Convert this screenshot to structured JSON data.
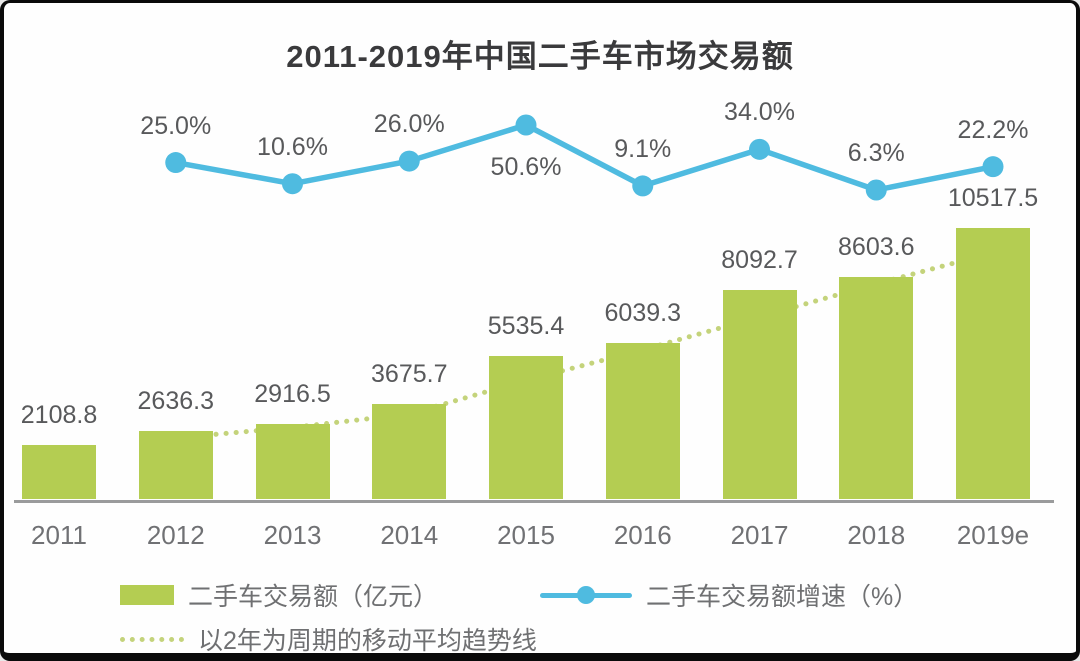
{
  "title": "2011-2019年中国二手车市场交易额",
  "chart_data": {
    "type": "bar",
    "subtype": "bar+line combo",
    "title": "2011-2019年中国二手车市场交易额",
    "xlabel": "",
    "ylabel": "",
    "grid": false,
    "legend_position": "bottom",
    "axis_color": "#9a9b9c",
    "categories": [
      "2011",
      "2012",
      "2013",
      "2014",
      "2015",
      "2016",
      "2017",
      "2018",
      "2019e"
    ],
    "series": [
      {
        "name": "二手车交易额（亿元）",
        "type": "bar",
        "color": "#b4cd52",
        "values": [
          2108.8,
          2636.3,
          2916.5,
          3675.7,
          5535.4,
          6039.3,
          8092.7,
          8603.6,
          10517.5
        ],
        "labels": [
          "2108.8",
          "2636.3",
          "2916.5",
          "3675.7",
          "5535.4",
          "6039.3",
          "8092.7",
          "8603.6",
          "10517.5"
        ]
      },
      {
        "name": "二手车交易额增速（%）",
        "type": "line",
        "color": "#4fbbe0",
        "start_category_index": 1,
        "values": [
          25.0,
          10.6,
          26.0,
          50.6,
          9.1,
          34.0,
          6.3,
          22.2
        ],
        "labels": [
          "25.0%",
          "10.6%",
          "26.0%",
          "50.6%",
          "9.1%",
          "34.0%",
          "6.3%",
          "22.2%"
        ],
        "label_side": [
          "above",
          "above",
          "above",
          "below",
          "above",
          "above",
          "above",
          "above"
        ]
      },
      {
        "name": "以2年为周期的移动平均趋势线",
        "type": "dotted_trend",
        "color": "#c4d37b",
        "derivation": "2-year moving average of bar values, plotted from 2012 to 2019e"
      }
    ]
  },
  "legend": {
    "bar_label": "二手车交易额（亿元）",
    "line_label": "二手车交易额增速（%）",
    "trend_label": "以2年为周期的移动平均趋势线"
  }
}
